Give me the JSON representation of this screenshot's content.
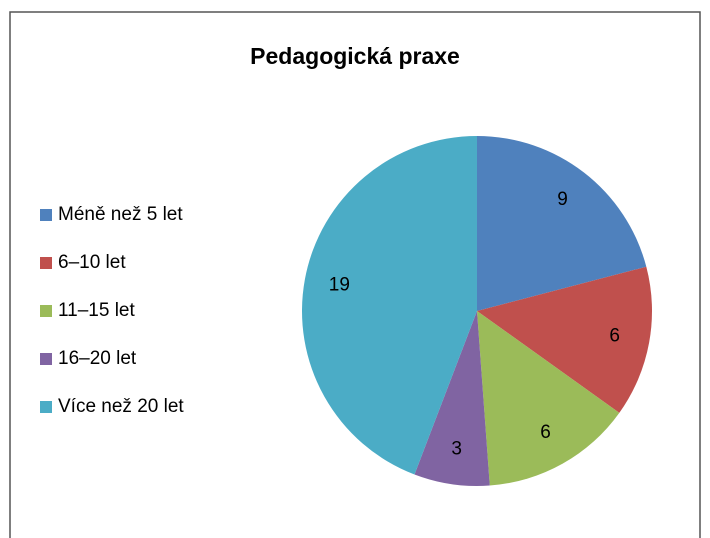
{
  "chart_data": {
    "type": "pie",
    "title": "Pedagogická praxe",
    "categories": [
      "Méně než 5 let",
      "6–10 let",
      "11–15 let",
      "16–20 let",
      "Více než 20 let"
    ],
    "values": [
      9,
      6,
      6,
      3,
      19
    ],
    "colors": [
      "#4f81bd",
      "#c0504d",
      "#9bbb59",
      "#8064a2",
      "#4bacc6"
    ],
    "legend": "left"
  }
}
